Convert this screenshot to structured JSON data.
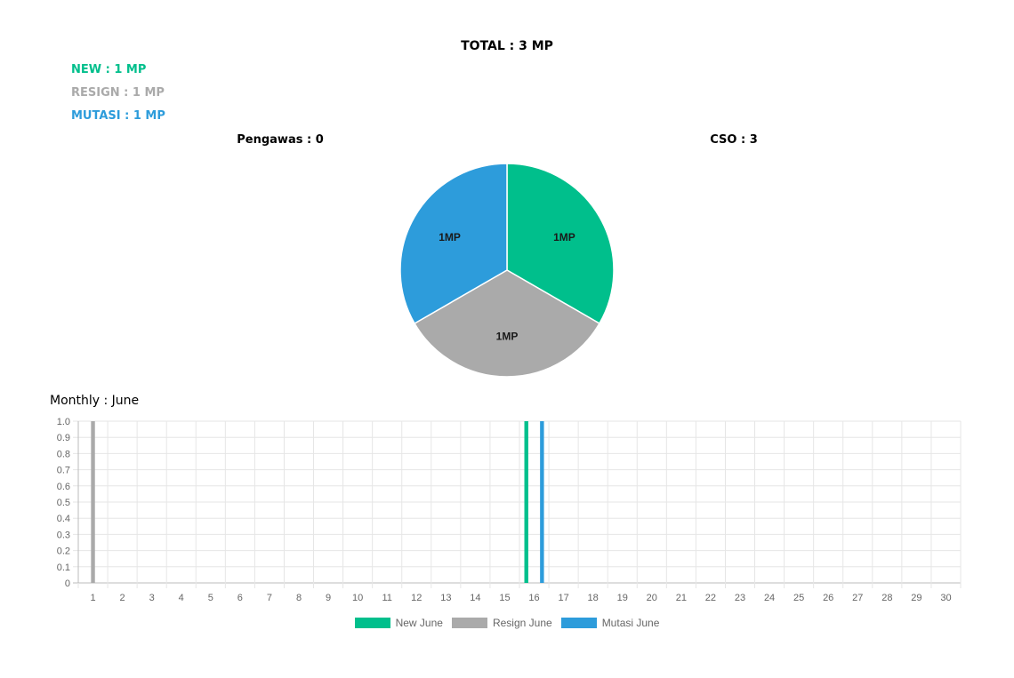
{
  "header": {
    "total": "TOTAL : 3 MP"
  },
  "stats": {
    "new": "NEW : 1 MP",
    "resign": "RESIGN : 1 MP",
    "mutasi": "MUTASI : 1 MP"
  },
  "groups": {
    "left": "Pengawas : 0",
    "right": "CSO : 3"
  },
  "colors": {
    "new": "#00bf8c",
    "resign": "#aaaaaa",
    "mutasi": "#2d9cdb"
  },
  "monthly_title": "Monthly : June",
  "chart_data": [
    {
      "type": "pie",
      "slices": [
        {
          "key": "new",
          "label": "1MP",
          "value": 1
        },
        {
          "key": "resign",
          "label": "1MP",
          "value": 1
        },
        {
          "key": "mutasi",
          "label": "1MP",
          "value": 1
        }
      ]
    },
    {
      "type": "bar",
      "categories": [
        "1",
        "2",
        "3",
        "4",
        "5",
        "6",
        "7",
        "8",
        "9",
        "10",
        "11",
        "12",
        "13",
        "14",
        "15",
        "16",
        "17",
        "18",
        "19",
        "20",
        "21",
        "22",
        "23",
        "24",
        "25",
        "26",
        "27",
        "28",
        "29",
        "30"
      ],
      "series": [
        {
          "name": "New June",
          "key": "new",
          "values": [
            0,
            0,
            0,
            0,
            0,
            0,
            0,
            0,
            0,
            0,
            0,
            0,
            0,
            0,
            0,
            1,
            0,
            0,
            0,
            0,
            0,
            0,
            0,
            0,
            0,
            0,
            0,
            0,
            0,
            0
          ]
        },
        {
          "name": "Resign June",
          "key": "resign",
          "values": [
            1,
            0,
            0,
            0,
            0,
            0,
            0,
            0,
            0,
            0,
            0,
            0,
            0,
            0,
            0,
            0,
            0,
            0,
            0,
            0,
            0,
            0,
            0,
            0,
            0,
            0,
            0,
            0,
            0,
            0
          ]
        },
        {
          "name": "Mutasi June",
          "key": "mutasi",
          "values": [
            0,
            0,
            0,
            0,
            0,
            0,
            0,
            0,
            0,
            0,
            0,
            0,
            0,
            0,
            0,
            1,
            0,
            0,
            0,
            0,
            0,
            0,
            0,
            0,
            0,
            0,
            0,
            0,
            0,
            0
          ]
        }
      ],
      "yticks": [
        "0",
        "0.1",
        "0.2",
        "0.3",
        "0.4",
        "0.5",
        "0.6",
        "0.7",
        "0.8",
        "0.9",
        "1.0"
      ],
      "ylim": [
        0,
        1
      ],
      "grid": true,
      "legend": "bottom"
    }
  ]
}
